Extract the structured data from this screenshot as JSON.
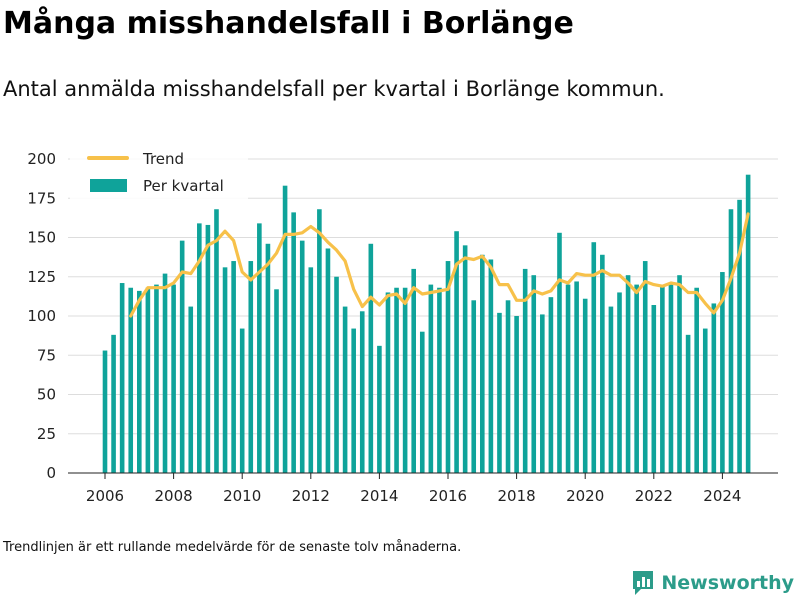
{
  "header": {
    "title": "Många misshandelsfall i Borlänge",
    "subtitle": "Antal anmälda misshandelsfall per kvartal i Borlänge kommun."
  },
  "footer": {
    "footnote": "Trendlinjen är ett rullande medelvärde för de senaste tolv månaderna.",
    "brand_name": "Newsworthy",
    "brand_icon": "newsworthy-logo-icon"
  },
  "colors": {
    "bar": "#0fa39a",
    "trend": "#f7c14a",
    "grid": "#dddddd",
    "axis": "#222222",
    "brand": "#2c9c8a"
  },
  "chart_data": {
    "type": "bar",
    "x_start_year": 2006,
    "x_end_year": 2024,
    "x_ticks": [
      "2006",
      "2008",
      "2010",
      "2012",
      "2014",
      "2016",
      "2018",
      "2020",
      "2022",
      "2024"
    ],
    "y_ticks": [
      "0",
      "25",
      "50",
      "75",
      "100",
      "125",
      "150",
      "175",
      "200"
    ],
    "ylim": [
      0,
      200
    ],
    "grid": true,
    "legend_position": "top-left",
    "series": [
      {
        "name": "Per kvartal",
        "type": "bar",
        "values": [
          78,
          88,
          121,
          118,
          116,
          118,
          120,
          127,
          120,
          148,
          106,
          159,
          158,
          168,
          131,
          135,
          92,
          135,
          159,
          146,
          117,
          183,
          166,
          148,
          131,
          168,
          143,
          125,
          106,
          92,
          103,
          146,
          81,
          115,
          118,
          118,
          130,
          90,
          120,
          118,
          135,
          154,
          145,
          110,
          139,
          136,
          102,
          110,
          100,
          130,
          126,
          101,
          112,
          153,
          120,
          122,
          111,
          147,
          139,
          106,
          115,
          126,
          120,
          135,
          107,
          120,
          120,
          126,
          88,
          118,
          92,
          108,
          128,
          168,
          174,
          190
        ]
      },
      {
        "name": "Trend",
        "type": "line",
        "start_index": 3,
        "values": [
          100,
          110,
          118,
          118,
          118,
          121,
          128,
          127,
          135,
          145,
          148,
          154,
          148,
          128,
          123,
          128,
          133,
          140,
          152,
          152,
          153,
          157,
          153,
          147,
          142,
          135,
          117,
          106,
          112,
          107,
          113,
          114,
          108,
          118,
          114,
          115,
          116,
          117,
          133,
          137,
          136,
          138,
          131,
          120,
          120,
          110,
          110,
          116,
          114,
          116,
          123,
          121,
          127,
          126,
          126,
          129,
          126,
          126,
          121,
          115,
          122,
          120,
          119,
          121,
          120,
          115,
          115,
          108,
          102,
          110,
          124,
          140,
          165
        ]
      }
    ]
  }
}
